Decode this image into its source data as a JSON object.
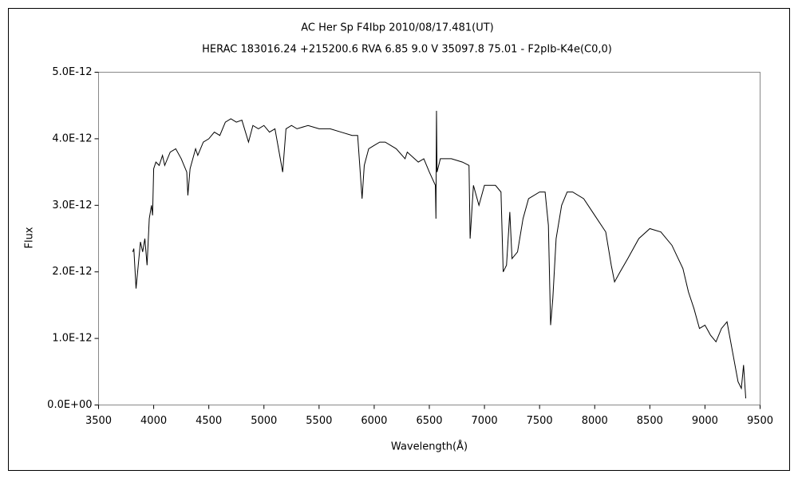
{
  "chart_data": {
    "type": "line",
    "title": "AC Her    Sp F4Ibp    2010/08/17.481(UT)",
    "subtitle": "HERAC 183016.24 +215200.6 RVA 6.85 9.0 V 35097.8 75.01 - F2pIb-K4e(C0,0)",
    "x_label": "Wavelength(Å)",
    "y_label": "Flux",
    "color": "#000000",
    "xlim": [
      3500,
      9500
    ],
    "xticks": [
      3500,
      4000,
      4500,
      5000,
      5500,
      6000,
      6500,
      7000,
      7500,
      8000,
      8500,
      9000,
      9500
    ],
    "ylim": [
      0,
      5e-12
    ],
    "yticks": [
      {
        "value": 0,
        "label": "0.0E+00"
      },
      {
        "value": 1e-12,
        "label": "1.0E-12"
      },
      {
        "value": 2e-12,
        "label": "2.0E-12"
      },
      {
        "value": 3e-12,
        "label": "3.0E-12"
      },
      {
        "value": 4e-12,
        "label": "4.0E-12"
      },
      {
        "value": 5e-12,
        "label": "5.0E-12"
      }
    ],
    "x": [
      3810,
      3820,
      3840,
      3860,
      3880,
      3900,
      3920,
      3940,
      3960,
      3980,
      3990,
      4000,
      4020,
      4050,
      4080,
      4100,
      4150,
      4200,
      4250,
      4300,
      4310,
      4330,
      4380,
      4400,
      4450,
      4500,
      4550,
      4600,
      4650,
      4700,
      4750,
      4800,
      4860,
      4900,
      4950,
      5000,
      5050,
      5100,
      5170,
      5200,
      5250,
      5300,
      5400,
      5500,
      5600,
      5700,
      5800,
      5850,
      5890,
      5910,
      5950,
      6000,
      6050,
      6100,
      6200,
      6280,
      6300,
      6400,
      6450,
      6500,
      6555,
      6560,
      6565,
      6570,
      6600,
      6700,
      6800,
      6860,
      6870,
      6900,
      6950,
      7000,
      7100,
      7150,
      7170,
      7200,
      7230,
      7250,
      7300,
      7350,
      7400,
      7500,
      7550,
      7580,
      7600,
      7620,
      7650,
      7700,
      7750,
      7800,
      7900,
      8000,
      8100,
      8150,
      8180,
      8230,
      8300,
      8400,
      8500,
      8600,
      8700,
      8800,
      8850,
      8900,
      8950,
      9000,
      9050,
      9100,
      9150,
      9200,
      9250,
      9300,
      9330,
      9350,
      9370
    ],
    "values": [
      2.3e-12,
      2.35e-12,
      1.75e-12,
      2.1e-12,
      2.45e-12,
      2.3e-12,
      2.5e-12,
      2.1e-12,
      2.8e-12,
      3e-12,
      2.85e-12,
      3.55e-12,
      3.65e-12,
      3.6e-12,
      3.75e-12,
      3.6e-12,
      3.8e-12,
      3.85e-12,
      3.7e-12,
      3.5e-12,
      3.15e-12,
      3.55e-12,
      3.85e-12,
      3.75e-12,
      3.95e-12,
      4e-12,
      4.1e-12,
      4.05e-12,
      4.25e-12,
      4.3e-12,
      4.25e-12,
      4.28e-12,
      3.95e-12,
      4.2e-12,
      4.15e-12,
      4.2e-12,
      4.1e-12,
      4.15e-12,
      3.5e-12,
      4.15e-12,
      4.2e-12,
      4.15e-12,
      4.2e-12,
      4.15e-12,
      4.15e-12,
      4.1e-12,
      4.05e-12,
      4.05e-12,
      3.1e-12,
      3.6e-12,
      3.85e-12,
      3.9e-12,
      3.95e-12,
      3.95e-12,
      3.85e-12,
      3.7e-12,
      3.8e-12,
      3.65e-12,
      3.7e-12,
      3.5e-12,
      3.3e-12,
      2.8e-12,
      4.42e-12,
      3.5e-12,
      3.7e-12,
      3.7e-12,
      3.65e-12,
      3.6e-12,
      2.5e-12,
      3.3e-12,
      3e-12,
      3.3e-12,
      3.3e-12,
      3.2e-12,
      2e-12,
      2.1e-12,
      2.9e-12,
      2.2e-12,
      2.3e-12,
      2.8e-12,
      3.1e-12,
      3.2e-12,
      3.2e-12,
      2.7e-12,
      1.2e-12,
      1.6e-12,
      2.5e-12,
      3e-12,
      3.2e-12,
      3.2e-12,
      3.1e-12,
      2.85e-12,
      2.6e-12,
      2.1e-12,
      1.85e-12,
      2e-12,
      2.2e-12,
      2.5e-12,
      2.65e-12,
      2.6e-12,
      2.4e-12,
      2.05e-12,
      1.7e-12,
      1.45e-12,
      1.15e-12,
      1.2e-12,
      1.05e-12,
      9.5e-13,
      1.15e-12,
      1.25e-12,
      8e-13,
      3.5e-13,
      2.5e-13,
      6e-13,
      1e-13
    ]
  }
}
